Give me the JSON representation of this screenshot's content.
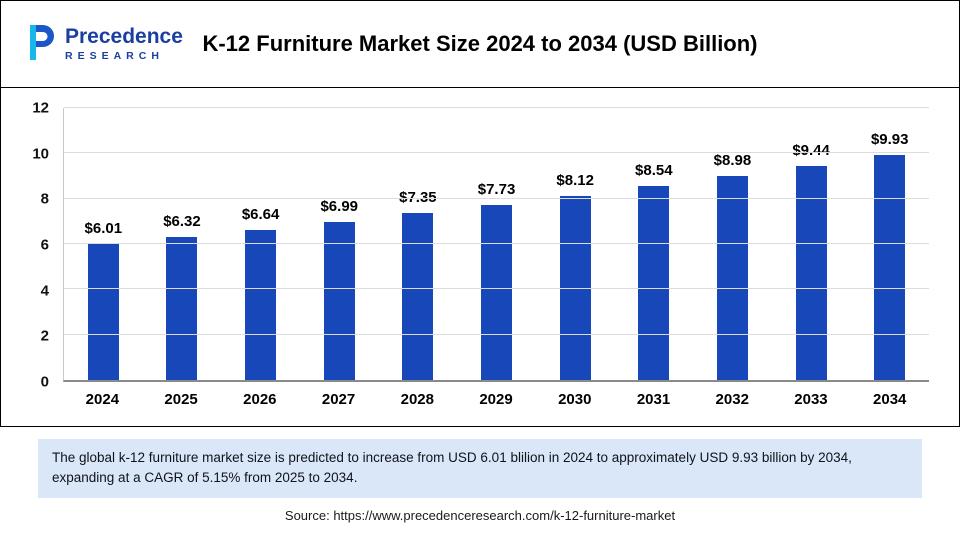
{
  "header": {
    "logo": {
      "line1": "Precedence",
      "line2": "RESEARCH"
    },
    "title": "K-12 Furniture Market Size 2024 to 2034 (USD Billion)"
  },
  "chart_data": {
    "type": "bar",
    "title": "K-12 Furniture Market Size 2024 to 2034 (USD Billion)",
    "categories": [
      "2024",
      "2025",
      "2026",
      "2027",
      "2028",
      "2029",
      "2030",
      "2031",
      "2032",
      "2033",
      "2034"
    ],
    "values": [
      6.01,
      6.32,
      6.64,
      6.99,
      7.35,
      7.73,
      8.12,
      8.54,
      8.98,
      9.44,
      9.93
    ],
    "value_labels": [
      "$6.01",
      "$6.32",
      "$6.64",
      "$6.99",
      "$7.35",
      "$7.73",
      "$8.12",
      "$8.54",
      "$8.98",
      "$9.44",
      "$9.93"
    ],
    "xlabel": "",
    "ylabel": "",
    "ylim": [
      0,
      12
    ],
    "y_ticks": [
      0,
      2,
      4,
      6,
      8,
      10,
      12
    ],
    "grid": "horizontal",
    "legend": "none",
    "bar_color": "#1747b8"
  },
  "note": {
    "text": "The global k-12 furniture market size is predicted to increase from USD 6.01 blilion in 2024 to approximately USD 9.93 billion by 2034, expanding at a CAGR of 5.15% from 2025 to 2034."
  },
  "source": {
    "text": "Source: https://www.precedenceresearch.com/k-12-furniture-market"
  }
}
